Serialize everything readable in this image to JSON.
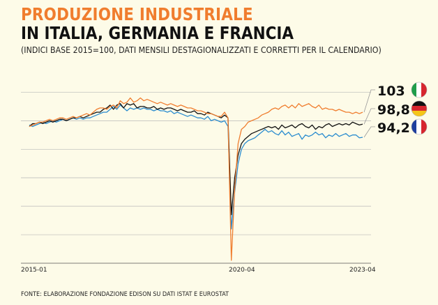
{
  "header": {
    "title_line1": "PRODUZIONE INDUSTRIALE",
    "title_line2": "IN ITALIA, GERMANIA E FRANCIA",
    "subtitle": "(INDICI BASE 2015=100, DATI MENSILI DESTAGIONALIZZATI E CORRETTI PER IL CALENDARIO)"
  },
  "footer": {
    "source": "FONTE: ELABORAZIONE FONDAZIONE EDISON SU DATI ISTAT E EUROSTAT"
  },
  "colors": {
    "italia": "#f07d2e",
    "germania": "#111111",
    "francia": "#2a8ccf",
    "title_accent": "#f07d2e",
    "gridline": "#b9b9b9"
  },
  "chart_data": {
    "type": "line",
    "title": "PRODUZIONE INDUSTRIALE IN ITALIA, GERMANIA E FRANCIA",
    "x_tick_labels": [
      "2015-01",
      "2020-04",
      "2023-04"
    ],
    "x_range": [
      "2015-01",
      "2023-04"
    ],
    "ylim": [
      50,
      115
    ],
    "gridlines": true,
    "legend": "right, end-of-line labels with national flags",
    "series": [
      {
        "name": "Italia",
        "flag": "italy-flag",
        "end_label": "103",
        "values": [
          98,
          98.5,
          99,
          99.5,
          99.5,
          100,
          100.5,
          100,
          100.5,
          101,
          101,
          100.5,
          101,
          101.5,
          101,
          101.5,
          102,
          102.5,
          102,
          103,
          104,
          104.5,
          104.5,
          104,
          105,
          105.5,
          104.5,
          107,
          106,
          106.5,
          108,
          106.5,
          107,
          108,
          107,
          107.5,
          107,
          106.5,
          106,
          106.5,
          106,
          105.5,
          106,
          105.5,
          105,
          105.5,
          105,
          104.5,
          104.5,
          104,
          103.5,
          103.5,
          103,
          102.5,
          102.5,
          102,
          101.5,
          101.5,
          103,
          101,
          51,
          76,
          92,
          97,
          98,
          99.5,
          100,
          100.5,
          101,
          102,
          102.5,
          103,
          104,
          104.5,
          104,
          105,
          105.5,
          104.5,
          105.5,
          104.5,
          106,
          105,
          105.5,
          106,
          105,
          104.5,
          105.5,
          104,
          104.5,
          104,
          104,
          103.5,
          104,
          103.5,
          103,
          103,
          102.5,
          103,
          102.5,
          103
        ]
      },
      {
        "name": "Germania",
        "flag": "germany-flag",
        "end_label": "98,8",
        "values": [
          98,
          99,
          99,
          99.5,
          99,
          99.5,
          100,
          99.5,
          100,
          100.5,
          100.5,
          100,
          100.5,
          101,
          101,
          101.5,
          101,
          101.5,
          102,
          102.5,
          103,
          103,
          104,
          104.5,
          105.5,
          104,
          105.5,
          106,
          104.5,
          106,
          105.5,
          106,
          104.5,
          105,
          105,
          104.5,
          104.5,
          105,
          104,
          104.5,
          104,
          104.5,
          104.5,
          104,
          103.5,
          104,
          103.5,
          103,
          103,
          103.5,
          102.5,
          102.5,
          102,
          103,
          102.5,
          102,
          101.5,
          101,
          102,
          101,
          67,
          80,
          88,
          92,
          93.5,
          94.5,
          95.5,
          96,
          96.5,
          97,
          97.5,
          98,
          97.5,
          98,
          97,
          98.5,
          97.5,
          98,
          98.5,
          97.5,
          98.5,
          99,
          98,
          97.5,
          98.5,
          97,
          98,
          97.5,
          98.5,
          99,
          98,
          98.5,
          99,
          98.5,
          99,
          98.5,
          99.5,
          99,
          98.5,
          98.8
        ]
      },
      {
        "name": "Francia",
        "flag": "france-flag",
        "end_label": "94,2",
        "values": [
          98.5,
          98,
          98.5,
          99,
          99.5,
          99,
          99.5,
          100,
          99.5,
          100,
          100.5,
          100,
          100.5,
          101,
          100.5,
          101,
          100.5,
          101,
          101,
          101.5,
          102,
          102.5,
          103,
          103,
          104,
          105,
          104,
          105.5,
          104.5,
          103.5,
          104.5,
          104,
          104.5,
          104,
          104.5,
          104,
          104,
          103.5,
          104,
          103.5,
          103.5,
          103,
          103.5,
          102.5,
          103,
          102.5,
          102,
          101.5,
          102,
          101.5,
          101,
          101,
          100.5,
          101.5,
          100,
          100.5,
          100,
          99.5,
          100,
          98,
          62,
          75,
          85,
          90,
          92,
          93,
          93.5,
          94,
          95,
          96,
          97,
          96,
          96.5,
          95.5,
          95,
          96.5,
          95,
          96,
          94.5,
          95,
          95.5,
          93.5,
          95,
          94.5,
          95,
          96,
          95,
          95.5,
          94,
          95,
          94.5,
          95.5,
          94.5,
          95,
          95.5,
          94.5,
          95,
          95,
          94,
          94.2
        ]
      }
    ]
  }
}
